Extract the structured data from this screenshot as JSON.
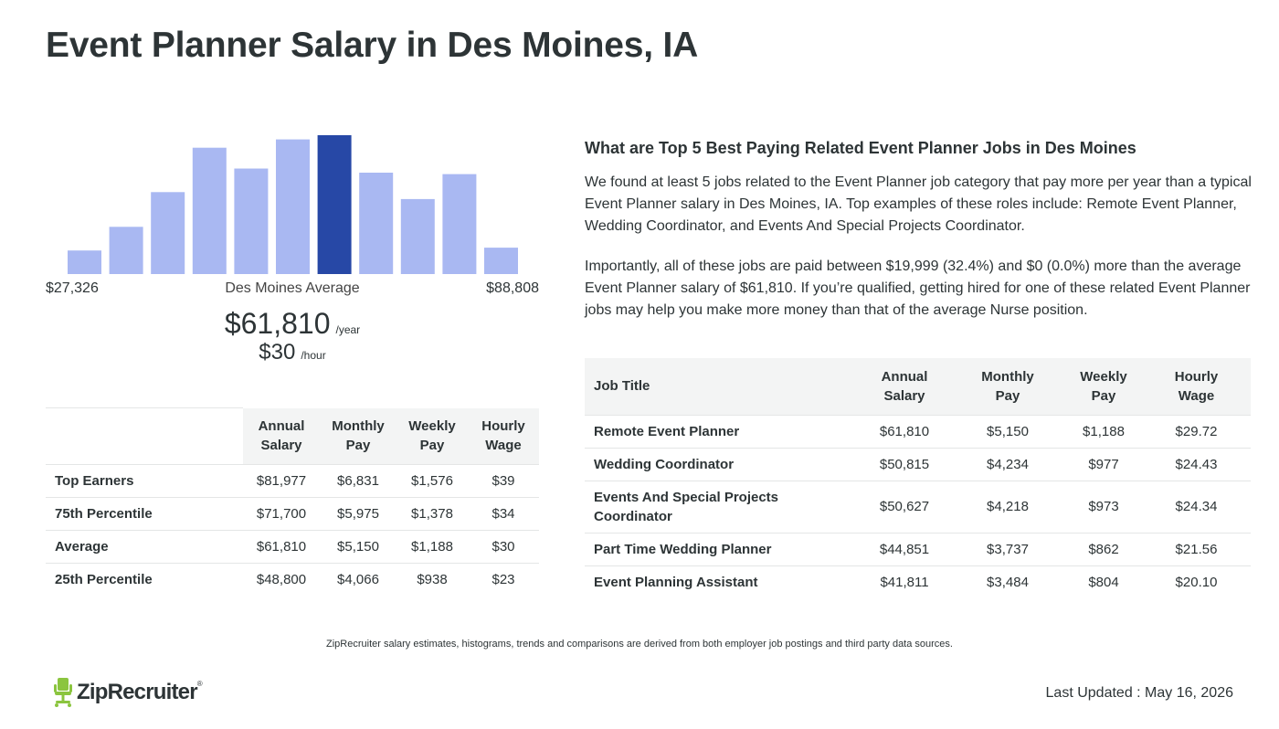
{
  "page": {
    "title": "Event Planner Salary in Des Moines, IA"
  },
  "chart_data": {
    "type": "bar",
    "title": "",
    "categories": [
      "1",
      "2",
      "3",
      "4",
      "5",
      "6",
      "7",
      "8",
      "9",
      "10",
      "11"
    ],
    "values": [
      17,
      34,
      59,
      91,
      76,
      97,
      100,
      73,
      54,
      72,
      19
    ],
    "highlight_index": 6,
    "ylim": [
      0,
      100
    ],
    "grid": false,
    "colors": {
      "bar": "#a9b8f2",
      "highlight": "#2748a6"
    }
  },
  "range": {
    "min_label": "$27,326",
    "mid_label": "Des Moines Average",
    "max_label": "$88,808"
  },
  "average": {
    "annual": "$61,810",
    "annual_unit": "/year",
    "hourly": "$30",
    "hourly_unit": "/hour"
  },
  "percentile_table": {
    "headers": {
      "annual": [
        "Annual",
        "Salary"
      ],
      "monthly": [
        "Monthly",
        "Pay"
      ],
      "weekly": [
        "Weekly",
        "Pay"
      ],
      "hourly": [
        "Hourly",
        "Wage"
      ]
    },
    "rows": [
      {
        "label": "Top Earners",
        "annual": "$81,977",
        "monthly": "$6,831",
        "weekly": "$1,576",
        "hourly": "$39"
      },
      {
        "label": "75th Percentile",
        "annual": "$71,700",
        "monthly": "$5,975",
        "weekly": "$1,378",
        "hourly": "$34"
      },
      {
        "label": "Average",
        "annual": "$61,810",
        "monthly": "$5,150",
        "weekly": "$1,188",
        "hourly": "$30"
      },
      {
        "label": "25th Percentile",
        "annual": "$48,800",
        "monthly": "$4,066",
        "weekly": "$938",
        "hourly": "$23"
      }
    ]
  },
  "related": {
    "heading": "What are Top 5 Best Paying Related Event Planner Jobs in Des Moines",
    "paragraph1": "We found at least 5 jobs related to the Event Planner job category that pay more per year than a typical Event Planner salary in Des Moines, IA. Top examples of these roles include: Remote Event Planner, Wedding Coordinator, and Events And Special Projects Coordinator.",
    "paragraph2": "Importantly, all of these jobs are paid between $19,999 (32.4%) and $0 (0.0%) more than the average Event Planner salary of $61,810. If you’re qualified, getting hired for one of these related Event Planner jobs may help you make more money than that of the average Nurse position."
  },
  "jobs_table": {
    "headers": {
      "title": "Job Title",
      "annual": [
        "Annual",
        "Salary"
      ],
      "monthly": [
        "Monthly",
        "Pay"
      ],
      "weekly": [
        "Weekly",
        "Pay"
      ],
      "hourly": [
        "Hourly",
        "Wage"
      ]
    },
    "rows": [
      {
        "title": [
          "Remote Event Planner"
        ],
        "annual": "$61,810",
        "monthly": "$5,150",
        "weekly": "$1,188",
        "hourly": "$29.72"
      },
      {
        "title": [
          "Wedding Coordinator"
        ],
        "annual": "$50,815",
        "monthly": "$4,234",
        "weekly": "$977",
        "hourly": "$24.43"
      },
      {
        "title": [
          "Events And Special Projects",
          "Coordinator"
        ],
        "annual": "$50,627",
        "monthly": "$4,218",
        "weekly": "$973",
        "hourly": "$24.34"
      },
      {
        "title": [
          "Part Time Wedding Planner"
        ],
        "annual": "$44,851",
        "monthly": "$3,737",
        "weekly": "$862",
        "hourly": "$21.56"
      },
      {
        "title": [
          "Event Planning Assistant"
        ],
        "annual": "$41,811",
        "monthly": "$3,484",
        "weekly": "$804",
        "hourly": "$20.10"
      }
    ]
  },
  "footer": {
    "note": "ZipRecruiter salary estimates, histograms, trends and comparisons are derived from both employer job postings and third party data sources.",
    "logo_text": "ZipRecruiter",
    "logo_reg": "®",
    "logo_icon": "chair-icon",
    "last_updated": "Last Updated : May 16, 2026"
  }
}
